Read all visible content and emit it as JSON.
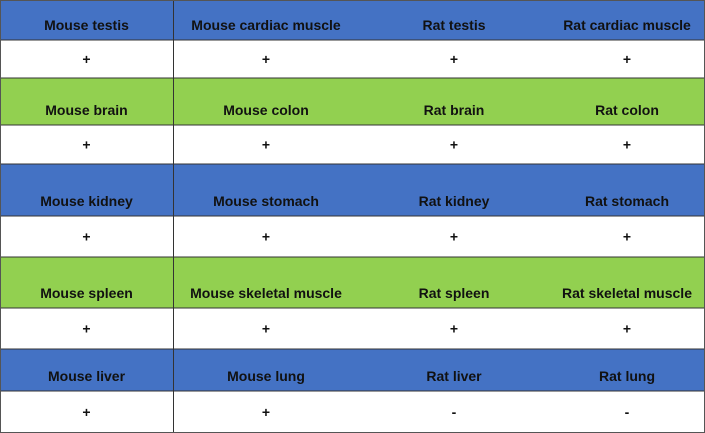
{
  "table": {
    "rows": [
      [
        "Mouse testis",
        "Mouse cardiac muscle",
        "Rat testis",
        "Rat cardiac muscle"
      ],
      [
        "+",
        "+",
        "+",
        "+"
      ],
      [
        "Mouse brain",
        "Mouse colon",
        "Rat brain",
        "Rat colon"
      ],
      [
        "+",
        "+",
        "+",
        "+"
      ],
      [
        "Mouse kidney",
        "Mouse stomach",
        "Rat kidney",
        "Rat stomach"
      ],
      [
        "+",
        "+",
        "+",
        "+"
      ],
      [
        "Mouse spleen",
        "Mouse skeletal muscle",
        "Rat spleen",
        "Rat skeletal muscle"
      ],
      [
        "+",
        "+",
        "+",
        "+"
      ],
      [
        "Mouse liver",
        "Mouse lung",
        "Rat liver",
        "Rat lung"
      ],
      [
        "+",
        "+",
        "-",
        "-"
      ]
    ]
  }
}
